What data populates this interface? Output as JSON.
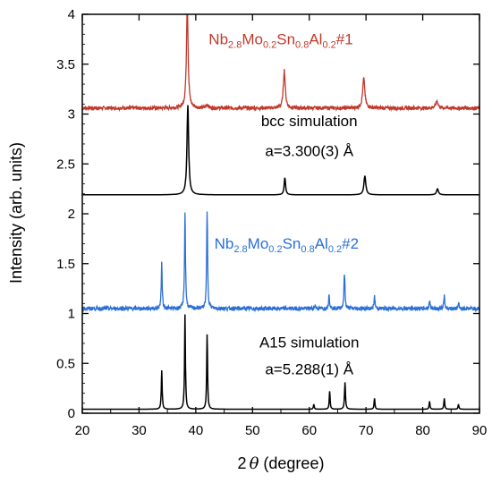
{
  "chart_data": {
    "type": "line",
    "xlabel_prefix": "2",
    "xlabel_theta": "θ",
    "xlabel_suffix": " (degree)",
    "ylabel": "Intensity (arb. units)",
    "xlim": [
      20,
      90
    ],
    "ylim": [
      0,
      4
    ],
    "xticks": [
      20,
      30,
      40,
      50,
      60,
      70,
      80,
      90
    ],
    "yticks": [
      0,
      0.5,
      1,
      1.5,
      2,
      2.5,
      3,
      3.5,
      4
    ],
    "ytick_labels": [
      "0",
      "0.5",
      "1",
      "1.5",
      "2",
      "2.5",
      "3",
      "3.5",
      "4"
    ],
    "grid": false,
    "series": [
      {
        "color": "#c0392b",
        "baseline": 3.06,
        "noise": 0.018,
        "peaks": [
          {
            "x": 38.5,
            "h": 1.05,
            "w": 0.35
          },
          {
            "x": 42.0,
            "h": 0.04,
            "w": 0.4
          },
          {
            "x": 55.6,
            "h": 0.38,
            "w": 0.4
          },
          {
            "x": 69.6,
            "h": 0.3,
            "w": 0.45
          },
          {
            "x": 82.5,
            "h": 0.07,
            "w": 0.5
          }
        ]
      },
      {
        "color": "#000000",
        "baseline": 2.19,
        "noise": 0.0,
        "peaks": [
          {
            "x": 38.6,
            "h": 0.9,
            "w": 0.35
          },
          {
            "x": 55.7,
            "h": 0.17,
            "w": 0.3
          },
          {
            "x": 69.8,
            "h": 0.19,
            "w": 0.4
          },
          {
            "x": 82.6,
            "h": 0.06,
            "w": 0.4
          }
        ]
      },
      {
        "color": "#2a6fd6",
        "baseline": 1.05,
        "noise": 0.02,
        "peaks": [
          {
            "x": 34.0,
            "h": 0.45,
            "w": 0.2
          },
          {
            "x": 38.1,
            "h": 0.97,
            "w": 0.2
          },
          {
            "x": 42.0,
            "h": 0.97,
            "w": 0.2
          },
          {
            "x": 61.0,
            "h": 0.04,
            "w": 0.2
          },
          {
            "x": 63.5,
            "h": 0.15,
            "w": 0.2
          },
          {
            "x": 66.2,
            "h": 0.35,
            "w": 0.22
          },
          {
            "x": 71.5,
            "h": 0.12,
            "w": 0.2
          },
          {
            "x": 81.2,
            "h": 0.08,
            "w": 0.2
          },
          {
            "x": 83.8,
            "h": 0.12,
            "w": 0.2
          },
          {
            "x": 86.3,
            "h": 0.06,
            "w": 0.2
          }
        ]
      },
      {
        "color": "#000000",
        "baseline": 0.04,
        "noise": 0.0,
        "peaks": [
          {
            "x": 34.0,
            "h": 0.39,
            "w": 0.18
          },
          {
            "x": 38.1,
            "h": 0.95,
            "w": 0.18
          },
          {
            "x": 42.0,
            "h": 0.75,
            "w": 0.18
          },
          {
            "x": 60.8,
            "h": 0.05,
            "w": 0.18
          },
          {
            "x": 63.6,
            "h": 0.18,
            "w": 0.18
          },
          {
            "x": 66.3,
            "h": 0.27,
            "w": 0.2
          },
          {
            "x": 71.5,
            "h": 0.11,
            "w": 0.18
          },
          {
            "x": 81.2,
            "h": 0.08,
            "w": 0.18
          },
          {
            "x": 83.8,
            "h": 0.11,
            "w": 0.18
          },
          {
            "x": 86.3,
            "h": 0.05,
            "w": 0.18
          }
        ]
      }
    ],
    "annotations": [
      {
        "x": 55,
        "y": 3.7,
        "color": "#c0392b",
        "parts": [
          {
            "t": "Nb",
            "sub": false
          },
          {
            "t": "2.8",
            "sub": true
          },
          {
            "t": "Mo",
            "sub": false
          },
          {
            "t": "0.2",
            "sub": true
          },
          {
            "t": "Sn",
            "sub": false
          },
          {
            "t": "0.8",
            "sub": true
          },
          {
            "t": "Al",
            "sub": false
          },
          {
            "t": "0.2",
            "sub": true
          },
          {
            "t": "#1",
            "sub": false
          }
        ]
      },
      {
        "x": 60,
        "y": 2.88,
        "color": "#000000",
        "parts": [
          {
            "t": "bcc simulation",
            "sub": false
          }
        ]
      },
      {
        "x": 60,
        "y": 2.58,
        "color": "#000000",
        "parts": [
          {
            "t": "a=3.300(3) Å",
            "sub": false
          }
        ]
      },
      {
        "x": 56,
        "y": 1.65,
        "color": "#2a6fd6",
        "parts": [
          {
            "t": "Nb",
            "sub": false
          },
          {
            "t": "2.8",
            "sub": true
          },
          {
            "t": "Mo",
            "sub": false
          },
          {
            "t": "0.2",
            "sub": true
          },
          {
            "t": "Sn",
            "sub": false
          },
          {
            "t": "0.8",
            "sub": true
          },
          {
            "t": "Al",
            "sub": false
          },
          {
            "t": "0.2",
            "sub": true
          },
          {
            "t": "#2",
            "sub": false
          }
        ]
      },
      {
        "x": 60,
        "y": 0.66,
        "color": "#000000",
        "parts": [
          {
            "t": "A15 simulation",
            "sub": false
          }
        ]
      },
      {
        "x": 60,
        "y": 0.39,
        "color": "#000000",
        "parts": [
          {
            "t": "a=5.288(1) Å",
            "sub": false
          }
        ]
      }
    ]
  }
}
